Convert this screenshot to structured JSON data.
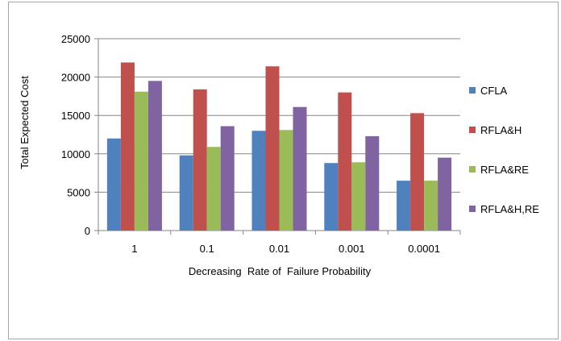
{
  "chart_data": {
    "type": "bar",
    "title": "",
    "xlabel": "Decreasing  Rate of  Failure Probability",
    "ylabel": "Total Expected Cost",
    "categories": [
      "1",
      "0.1",
      "0.01",
      "0.001",
      "0.0001"
    ],
    "ylim": [
      0,
      25000
    ],
    "yticks": [
      0,
      5000,
      10000,
      15000,
      20000,
      25000
    ],
    "grid": true,
    "legend_position": "right",
    "series": [
      {
        "name": "CFLA",
        "color": "#4f81bd",
        "values": [
          12000,
          9800,
          13000,
          8800,
          6500
        ]
      },
      {
        "name": "RFLA&H",
        "color": "#c0504d",
        "values": [
          21900,
          18400,
          21400,
          18000,
          15300
        ]
      },
      {
        "name": "RFLA&RE",
        "color": "#9bbb59",
        "values": [
          18100,
          10900,
          13100,
          8900,
          6500
        ]
      },
      {
        "name": "RFLA&H,RE",
        "color": "#8064a2",
        "values": [
          19500,
          13600,
          16100,
          12300,
          9500
        ]
      }
    ]
  }
}
